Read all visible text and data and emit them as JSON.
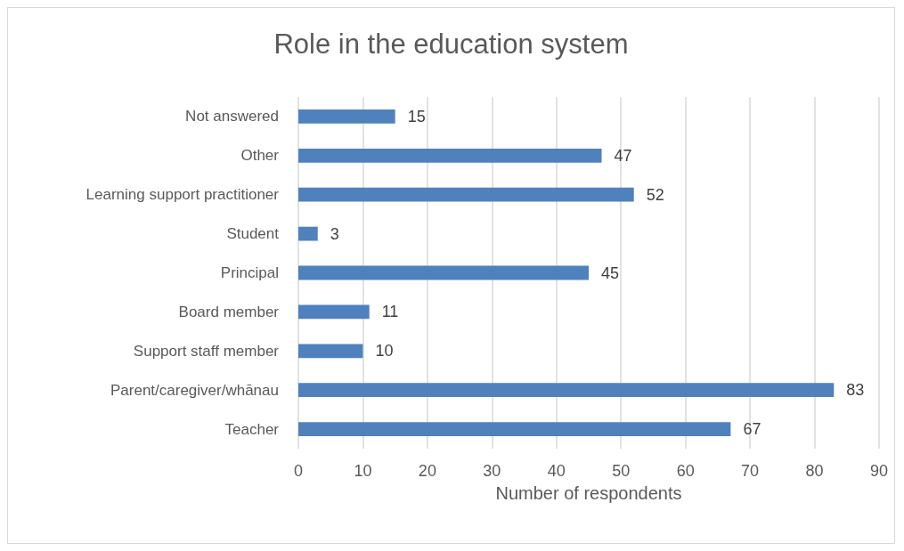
{
  "chart_data": {
    "type": "bar",
    "orientation": "horizontal",
    "title": "Role in the education system",
    "xlabel": "Number of respondents",
    "categories": [
      "Not answered",
      "Other",
      "Learning support practitioner",
      "Student",
      "Principal",
      "Board member",
      "Support staff member",
      "Parent/caregiver/whānau",
      "Teacher"
    ],
    "values": [
      15,
      47,
      52,
      3,
      45,
      11,
      10,
      83,
      67
    ],
    "color": "#4f81bd",
    "xlim": [
      0,
      90
    ],
    "xticks": [
      0,
      10,
      20,
      30,
      40,
      50,
      60,
      70,
      80,
      90
    ],
    "grid": "x",
    "data_labels": true
  }
}
